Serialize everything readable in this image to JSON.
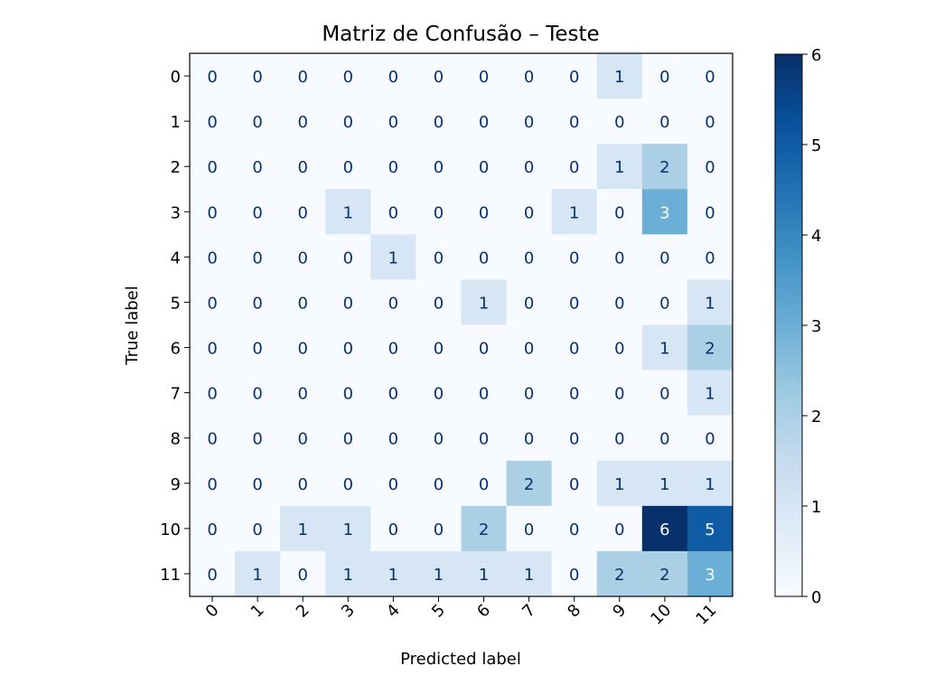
{
  "chart_data": {
    "type": "heatmap",
    "title": "Matriz de Confusão – Teste",
    "xlabel": "Predicted label",
    "ylabel": "True label",
    "x_categories": [
      "0",
      "1",
      "2",
      "3",
      "4",
      "5",
      "6",
      "7",
      "8",
      "9",
      "10",
      "11"
    ],
    "y_categories": [
      "0",
      "1",
      "2",
      "3",
      "4",
      "5",
      "6",
      "7",
      "8",
      "9",
      "10",
      "11"
    ],
    "values": [
      [
        0,
        0,
        0,
        0,
        0,
        0,
        0,
        0,
        0,
        1,
        0,
        0
      ],
      [
        0,
        0,
        0,
        0,
        0,
        0,
        0,
        0,
        0,
        0,
        0,
        0
      ],
      [
        0,
        0,
        0,
        0,
        0,
        0,
        0,
        0,
        0,
        1,
        2,
        0
      ],
      [
        0,
        0,
        0,
        1,
        0,
        0,
        0,
        0,
        1,
        0,
        3,
        0
      ],
      [
        0,
        0,
        0,
        0,
        1,
        0,
        0,
        0,
        0,
        0,
        0,
        0
      ],
      [
        0,
        0,
        0,
        0,
        0,
        0,
        1,
        0,
        0,
        0,
        0,
        1
      ],
      [
        0,
        0,
        0,
        0,
        0,
        0,
        0,
        0,
        0,
        0,
        1,
        2
      ],
      [
        0,
        0,
        0,
        0,
        0,
        0,
        0,
        0,
        0,
        0,
        0,
        1
      ],
      [
        0,
        0,
        0,
        0,
        0,
        0,
        0,
        0,
        0,
        0,
        0,
        0
      ],
      [
        0,
        0,
        0,
        0,
        0,
        0,
        0,
        2,
        0,
        1,
        1,
        1
      ],
      [
        0,
        0,
        1,
        1,
        0,
        0,
        2,
        0,
        0,
        0,
        6,
        5
      ],
      [
        0,
        1,
        0,
        1,
        1,
        1,
        1,
        1,
        0,
        2,
        2,
        3
      ]
    ],
    "colorbar": {
      "min": 0,
      "max": 6,
      "ticks": [
        "0",
        "1",
        "2",
        "3",
        "4",
        "5",
        "6"
      ],
      "colormap": "Blues"
    },
    "grid": false
  }
}
